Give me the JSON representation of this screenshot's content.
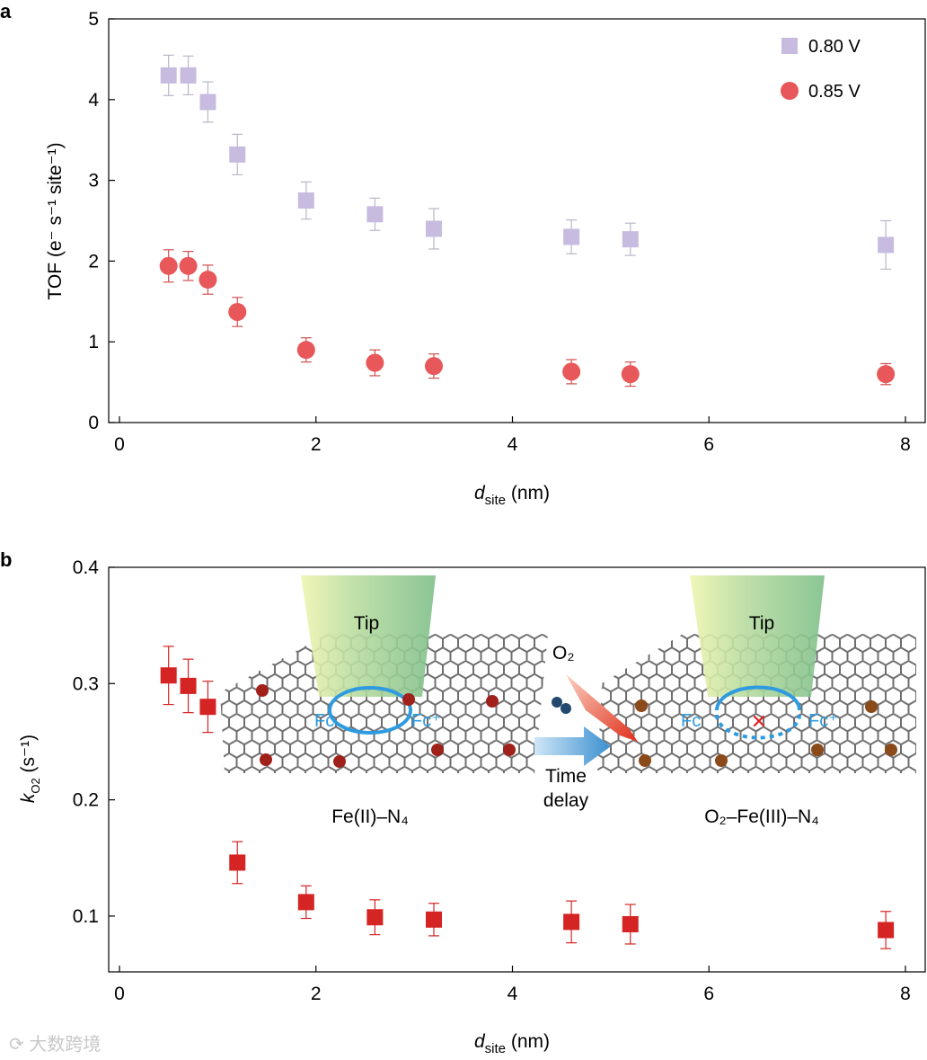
{
  "chart_data": [
    {
      "panel_label": "a",
      "type": "scatter",
      "xlabel": "d",
      "xlabel_sub": "site",
      "xlabel_unit": " (nm)",
      "ylabel": "TOF (e⁻ s⁻¹ site⁻¹)",
      "xlim": [
        0,
        8.2
      ],
      "ylim": [
        0,
        5
      ],
      "xticks": [
        "0",
        "2",
        "4",
        "6",
        "8"
      ],
      "yticks": [
        "0",
        "1",
        "2",
        "3",
        "4",
        "5"
      ],
      "legend_position": "top-right",
      "x": [
        0.5,
        0.7,
        0.9,
        1.2,
        1.9,
        2.6,
        3.2,
        4.6,
        5.2,
        7.8
      ],
      "series": [
        {
          "name": "0.80 V",
          "marker": "square",
          "color": "#c7bce0",
          "values": [
            4.3,
            4.3,
            3.97,
            3.32,
            2.75,
            2.58,
            2.4,
            2.3,
            2.27,
            2.2
          ],
          "errors": [
            0.25,
            0.24,
            0.25,
            0.25,
            0.23,
            0.2,
            0.25,
            0.21,
            0.2,
            0.3
          ]
        },
        {
          "name": "0.85 V",
          "marker": "circle",
          "color": "#e8575a",
          "values": [
            1.94,
            1.94,
            1.77,
            1.37,
            0.9,
            0.74,
            0.7,
            0.63,
            0.6,
            0.6
          ],
          "errors": [
            0.2,
            0.18,
            0.18,
            0.18,
            0.15,
            0.16,
            0.15,
            0.15,
            0.15,
            0.13
          ]
        }
      ]
    },
    {
      "panel_label": "b",
      "type": "scatter",
      "xlabel": "d",
      "xlabel_sub": "site",
      "xlabel_unit": " (nm)",
      "ylabel": "k",
      "ylabel_sub": "O2",
      "ylabel_unit": " (s⁻¹)",
      "xlim": [
        0,
        8.2
      ],
      "ylim": [
        0.052,
        0.4
      ],
      "xticks": [
        "0",
        "2",
        "4",
        "6",
        "8"
      ],
      "yticks": [
        "0.1",
        "0.2",
        "0.3",
        "0.4"
      ],
      "x": [
        0.5,
        0.7,
        0.9,
        1.2,
        1.9,
        2.6,
        3.2,
        4.6,
        5.2,
        7.8
      ],
      "series": [
        {
          "name": "k'O2",
          "marker": "square",
          "color": "#d42424",
          "values": [
            0.307,
            0.298,
            0.28,
            0.146,
            0.112,
            0.099,
            0.097,
            0.095,
            0.093,
            0.088
          ],
          "errors": [
            0.025,
            0.023,
            0.022,
            0.018,
            0.014,
            0.015,
            0.014,
            0.018,
            0.017,
            0.016
          ]
        }
      ],
      "inset": {
        "tip_left": "Tip",
        "tip_right": "Tip",
        "fc": "Fc",
        "fc_plus": "Fc⁺",
        "o2": "O₂",
        "time_delay_1": "Time",
        "time_delay_2": "delay",
        "left_label": "Fe(II)–N₄",
        "right_label": "O₂–Fe(III)–N₄"
      }
    }
  ],
  "watermark": "大数跨境"
}
